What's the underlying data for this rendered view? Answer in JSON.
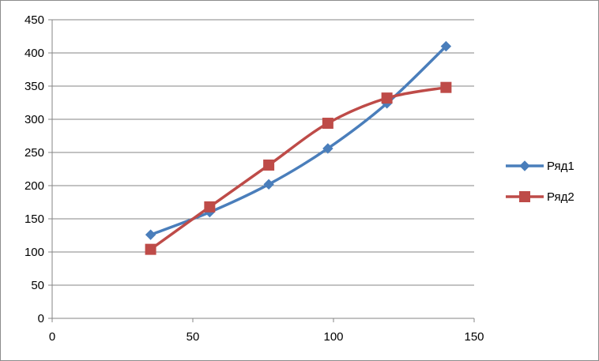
{
  "chart_data": {
    "type": "scatter",
    "title": "",
    "xlabel": "",
    "ylabel": "",
    "xlim": [
      0,
      150
    ],
    "ylim": [
      0,
      450
    ],
    "x_ticks": [
      0,
      50,
      100,
      150
    ],
    "y_ticks": [
      0,
      50,
      100,
      150,
      200,
      250,
      300,
      350,
      400,
      450
    ],
    "grid": "horizontal major gridlines",
    "smooth_lines": true,
    "legend_position": "right",
    "series": [
      {
        "name": "Ряд1",
        "color": "#4a7ebb",
        "marker": "diamond",
        "x": [
          35,
          56,
          77,
          98,
          119,
          140
        ],
        "y": [
          126,
          160,
          202,
          256,
          324,
          410
        ]
      },
      {
        "name": "Ряд2",
        "color": "#be4b48",
        "marker": "square",
        "x": [
          35,
          56,
          77,
          98,
          119,
          140
        ],
        "y": [
          104,
          168,
          231,
          294,
          332,
          348
        ]
      }
    ]
  }
}
